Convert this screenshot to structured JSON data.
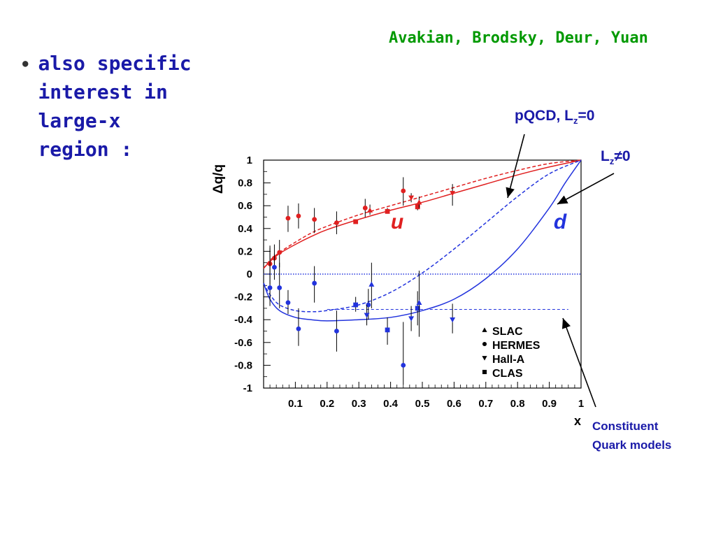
{
  "slide": {
    "credit": "Avakian, Brodsky, Deur, Yuan",
    "bullet_lines": [
      "also specific",
      "interest in",
      "large-x",
      "region :"
    ]
  },
  "colors": {
    "credit": "#009900",
    "text": "#1a1aa8",
    "u_series": "#e02020",
    "d_series": "#2233dd",
    "arrow": "#000000"
  },
  "annotations": {
    "pqcd_prefix": "pQCD, L",
    "pqcd_sub": "z",
    "pqcd_suffix": "=0",
    "lz_prefix": "L",
    "lz_sub": "z",
    "lz_suffix": "≠0",
    "cqm_line1": "Constituent",
    "cqm_line2": "Quark models",
    "u_label": "u",
    "d_label": "d"
  },
  "chart_data": {
    "type": "scatter",
    "xlabel": "x",
    "ylabel": "Δq/q",
    "xlim": [
      0,
      1
    ],
    "ylim": [
      -1,
      1
    ],
    "xticks": [
      0.1,
      0.2,
      0.3,
      0.4,
      0.5,
      0.6,
      0.7,
      0.8,
      0.9,
      1
    ],
    "yticks": [
      1,
      0.8,
      0.6,
      0.4,
      0.2,
      0,
      -0.2,
      -0.4,
      -0.6,
      -0.8,
      -1
    ],
    "legend": {
      "placement": "lower-right",
      "entries": [
        {
          "marker": "triangle-up",
          "label": "SLAC"
        },
        {
          "marker": "circle",
          "label": "HERMES"
        },
        {
          "marker": "triangle-down",
          "label": "Hall-A"
        },
        {
          "marker": "square",
          "label": "CLAS"
        }
      ]
    },
    "curves": [
      {
        "label": "u pQCD (Lz=0)",
        "color": "#e02020",
        "style": "dashed",
        "points": [
          [
            0.0,
            0.05
          ],
          [
            0.02,
            0.12
          ],
          [
            0.05,
            0.19
          ],
          [
            0.1,
            0.28
          ],
          [
            0.15,
            0.36
          ],
          [
            0.2,
            0.42
          ],
          [
            0.3,
            0.52
          ],
          [
            0.4,
            0.6
          ],
          [
            0.5,
            0.68
          ],
          [
            0.6,
            0.76
          ],
          [
            0.7,
            0.84
          ],
          [
            0.8,
            0.91
          ],
          [
            0.9,
            0.97
          ],
          [
            1.0,
            1.0
          ]
        ]
      },
      {
        "label": "u Lz≠0",
        "color": "#e02020",
        "style": "solid",
        "points": [
          [
            0.0,
            0.05
          ],
          [
            0.02,
            0.11
          ],
          [
            0.05,
            0.18
          ],
          [
            0.1,
            0.26
          ],
          [
            0.15,
            0.33
          ],
          [
            0.2,
            0.39
          ],
          [
            0.3,
            0.48
          ],
          [
            0.4,
            0.56
          ],
          [
            0.5,
            0.63
          ],
          [
            0.6,
            0.71
          ],
          [
            0.7,
            0.79
          ],
          [
            0.8,
            0.87
          ],
          [
            0.9,
            0.94
          ],
          [
            1.0,
            1.0
          ]
        ]
      },
      {
        "label": "d pQCD (Lz=0)",
        "color": "#2233dd",
        "style": "dashed",
        "points": [
          [
            0.0,
            -0.08
          ],
          [
            0.02,
            -0.18
          ],
          [
            0.05,
            -0.27
          ],
          [
            0.1,
            -0.32
          ],
          [
            0.15,
            -0.33
          ],
          [
            0.2,
            -0.32
          ],
          [
            0.3,
            -0.27
          ],
          [
            0.4,
            -0.16
          ],
          [
            0.5,
            0.01
          ],
          [
            0.6,
            0.22
          ],
          [
            0.7,
            0.45
          ],
          [
            0.8,
            0.68
          ],
          [
            0.9,
            0.88
          ],
          [
            1.0,
            1.0
          ]
        ]
      },
      {
        "label": "d Lz≠0",
        "color": "#2233dd",
        "style": "solid",
        "points": [
          [
            0.0,
            -0.08
          ],
          [
            0.02,
            -0.22
          ],
          [
            0.05,
            -0.32
          ],
          [
            0.1,
            -0.38
          ],
          [
            0.15,
            -0.4
          ],
          [
            0.2,
            -0.41
          ],
          [
            0.3,
            -0.4
          ],
          [
            0.4,
            -0.38
          ],
          [
            0.5,
            -0.32
          ],
          [
            0.6,
            -0.22
          ],
          [
            0.7,
            -0.04
          ],
          [
            0.8,
            0.22
          ],
          [
            0.9,
            0.58
          ],
          [
            0.95,
            0.8
          ],
          [
            1.0,
            1.0
          ]
        ]
      },
      {
        "label": "d constituent quark models",
        "color": "#2233dd",
        "style": "fine-dashed",
        "points": [
          [
            0.2,
            -0.31
          ],
          [
            0.96,
            -0.31
          ]
        ]
      }
    ],
    "zero_line": {
      "y": 0,
      "color": "#2233dd",
      "style": "dotted"
    },
    "points": [
      {
        "set": "u",
        "exp": "HERMES",
        "marker": "circle",
        "color": "#e02020",
        "x": 0.02,
        "y": 0.09,
        "ylo": -0.09,
        "yhi": 0.23
      },
      {
        "set": "u",
        "exp": "HERMES",
        "marker": "circle",
        "color": "#e02020",
        "x": 0.034,
        "y": 0.14,
        "ylo": 0.04,
        "yhi": 0.26
      },
      {
        "set": "u",
        "exp": "HERMES",
        "marker": "circle",
        "color": "#e02020",
        "x": 0.05,
        "y": 0.19,
        "ylo": 0.06,
        "yhi": 0.3
      },
      {
        "set": "u",
        "exp": "HERMES",
        "marker": "circle",
        "color": "#e02020",
        "x": 0.077,
        "y": 0.49,
        "ylo": 0.37,
        "yhi": 0.6
      },
      {
        "set": "u",
        "exp": "HERMES",
        "marker": "circle",
        "color": "#e02020",
        "x": 0.11,
        "y": 0.51,
        "ylo": 0.4,
        "yhi": 0.62
      },
      {
        "set": "u",
        "exp": "HERMES",
        "marker": "circle",
        "color": "#e02020",
        "x": 0.16,
        "y": 0.48,
        "ylo": 0.36,
        "yhi": 0.58
      },
      {
        "set": "u",
        "exp": "HERMES",
        "marker": "circle",
        "color": "#e02020",
        "x": 0.23,
        "y": 0.45,
        "ylo": 0.35,
        "yhi": 0.55
      },
      {
        "set": "u",
        "exp": "HERMES",
        "marker": "circle",
        "color": "#e02020",
        "x": 0.32,
        "y": 0.58,
        "ylo": 0.5,
        "yhi": 0.66
      },
      {
        "set": "u",
        "exp": "HERMES",
        "marker": "circle",
        "color": "#e02020",
        "x": 0.44,
        "y": 0.73,
        "ylo": 0.6,
        "yhi": 0.85
      },
      {
        "set": "u",
        "exp": "CLAS",
        "marker": "square",
        "color": "#e02020",
        "x": 0.29,
        "y": 0.46,
        "ylo": 0.45,
        "yhi": 0.48
      },
      {
        "set": "u",
        "exp": "CLAS",
        "marker": "square",
        "color": "#e02020",
        "x": 0.39,
        "y": 0.55,
        "ylo": 0.53,
        "yhi": 0.58
      },
      {
        "set": "u",
        "exp": "CLAS",
        "marker": "square",
        "color": "#e02020",
        "x": 0.485,
        "y": 0.59,
        "ylo": 0.56,
        "yhi": 0.62
      },
      {
        "set": "u",
        "exp": "SLAC",
        "marker": "triangle-up",
        "color": "#e02020",
        "x": 0.335,
        "y": 0.56,
        "ylo": 0.52,
        "yhi": 0.61
      },
      {
        "set": "u",
        "exp": "SLAC",
        "marker": "triangle-up",
        "color": "#e02020",
        "x": 0.49,
        "y": 0.63,
        "ylo": 0.58,
        "yhi": 0.68
      },
      {
        "set": "u",
        "exp": "Hall-A",
        "marker": "triangle-down",
        "color": "#e02020",
        "x": 0.465,
        "y": 0.67,
        "ylo": 0.63,
        "yhi": 0.71
      },
      {
        "set": "u",
        "exp": "Hall-A",
        "marker": "triangle-down",
        "color": "#e02020",
        "x": 0.595,
        "y": 0.71,
        "ylo": 0.6,
        "yhi": 0.79
      },
      {
        "set": "d",
        "exp": "HERMES",
        "marker": "circle",
        "color": "#2233dd",
        "x": 0.02,
        "y": -0.12,
        "ylo": -0.28,
        "yhi": 0.25
      },
      {
        "set": "d",
        "exp": "HERMES",
        "marker": "circle",
        "color": "#2233dd",
        "x": 0.034,
        "y": 0.06,
        "ylo": -0.05,
        "yhi": 0.18
      },
      {
        "set": "d",
        "exp": "HERMES",
        "marker": "circle",
        "color": "#2233dd",
        "x": 0.05,
        "y": -0.12,
        "ylo": -0.3,
        "yhi": 0.1
      },
      {
        "set": "d",
        "exp": "HERMES",
        "marker": "circle",
        "color": "#2233dd",
        "x": 0.077,
        "y": -0.25,
        "ylo": -0.35,
        "yhi": -0.14
      },
      {
        "set": "d",
        "exp": "HERMES",
        "marker": "circle",
        "color": "#2233dd",
        "x": 0.11,
        "y": -0.48,
        "ylo": -0.63,
        "yhi": -0.3
      },
      {
        "set": "d",
        "exp": "HERMES",
        "marker": "circle",
        "color": "#2233dd",
        "x": 0.16,
        "y": -0.08,
        "ylo": -0.25,
        "yhi": 0.07
      },
      {
        "set": "d",
        "exp": "HERMES",
        "marker": "circle",
        "color": "#2233dd",
        "x": 0.23,
        "y": -0.5,
        "ylo": -0.68,
        "yhi": -0.32
      },
      {
        "set": "d",
        "exp": "HERMES",
        "marker": "circle",
        "color": "#2233dd",
        "x": 0.33,
        "y": -0.27,
        "ylo": -0.4,
        "yhi": -0.13
      },
      {
        "set": "d",
        "exp": "HERMES",
        "marker": "circle",
        "color": "#2233dd",
        "x": 0.44,
        "y": -0.8,
        "ylo": -0.97,
        "yhi": -0.42
      },
      {
        "set": "d",
        "exp": "CLAS",
        "marker": "square",
        "color": "#2233dd",
        "x": 0.29,
        "y": -0.27,
        "ylo": -0.33,
        "yhi": -0.2
      },
      {
        "set": "d",
        "exp": "CLAS",
        "marker": "square",
        "color": "#2233dd",
        "x": 0.39,
        "y": -0.49,
        "ylo": -0.62,
        "yhi": -0.38
      },
      {
        "set": "d",
        "exp": "CLAS",
        "marker": "square",
        "color": "#2233dd",
        "x": 0.485,
        "y": -0.3,
        "ylo": -0.45,
        "yhi": -0.15
      },
      {
        "set": "d",
        "exp": "SLAC",
        "marker": "triangle-up",
        "color": "#2233dd",
        "x": 0.34,
        "y": -0.09,
        "ylo": -0.3,
        "yhi": 0.1
      },
      {
        "set": "d",
        "exp": "SLAC",
        "marker": "triangle-up",
        "color": "#2233dd",
        "x": 0.49,
        "y": -0.25,
        "ylo": -0.55,
        "yhi": 0.03
      },
      {
        "set": "d",
        "exp": "Hall-A",
        "marker": "triangle-down",
        "color": "#2233dd",
        "x": 0.325,
        "y": -0.36,
        "ylo": -0.45,
        "yhi": -0.27
      },
      {
        "set": "d",
        "exp": "Hall-A",
        "marker": "triangle-down",
        "color": "#2233dd",
        "x": 0.465,
        "y": -0.39,
        "ylo": -0.5,
        "yhi": -0.28
      },
      {
        "set": "d",
        "exp": "Hall-A",
        "marker": "triangle-down",
        "color": "#2233dd",
        "x": 0.595,
        "y": -0.4,
        "ylo": -0.52,
        "yhi": -0.26
      }
    ]
  }
}
